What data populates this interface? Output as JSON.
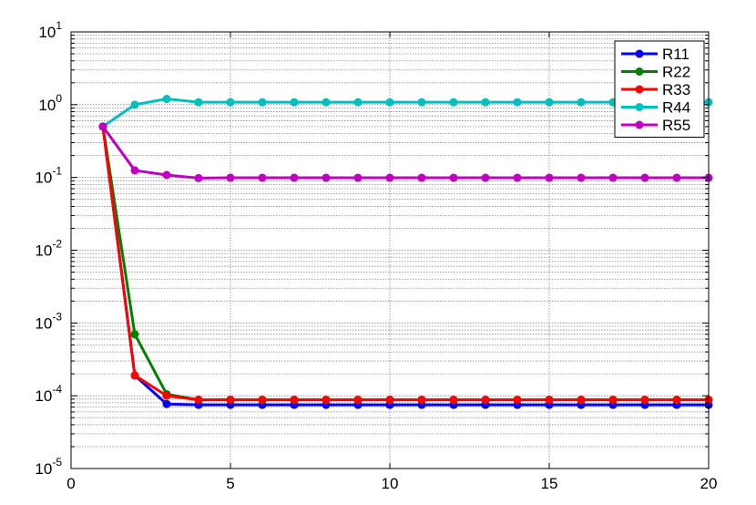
{
  "chart_data": {
    "type": "line",
    "title": "",
    "xlabel": "",
    "ylabel": "",
    "xlim": [
      0,
      20
    ],
    "ylim": [
      1e-05,
      10
    ],
    "yscale": "log",
    "grid": true,
    "legend_position": "top-right",
    "x_ticks": [
      "0",
      "5",
      "10",
      "15",
      "20"
    ],
    "y_ticks": [
      {
        "base": "10",
        "exp": "-5"
      },
      {
        "base": "10",
        "exp": "-4"
      },
      {
        "base": "10",
        "exp": "-3"
      },
      {
        "base": "10",
        "exp": "-2"
      },
      {
        "base": "10",
        "exp": "-1"
      },
      {
        "base": "10",
        "exp": "0"
      },
      {
        "base": "10",
        "exp": "1"
      }
    ],
    "x": [
      1,
      2,
      3,
      4,
      5,
      6,
      7,
      8,
      9,
      10,
      11,
      12,
      13,
      14,
      15,
      16,
      17,
      18,
      19,
      20
    ],
    "series": [
      {
        "name": "R11",
        "color": "#0000ff",
        "values": [
          0.5,
          0.00019,
          7.7e-05,
          7.5e-05,
          7.5e-05,
          7.5e-05,
          7.5e-05,
          7.5e-05,
          7.5e-05,
          7.5e-05,
          7.5e-05,
          7.5e-05,
          7.5e-05,
          7.5e-05,
          7.5e-05,
          7.5e-05,
          7.5e-05,
          7.5e-05,
          7.5e-05,
          7.5e-05
        ]
      },
      {
        "name": "R22",
        "color": "#008000",
        "values": [
          0.5,
          0.0007,
          0.000105,
          8.8e-05,
          8.8e-05,
          8.8e-05,
          8.8e-05,
          8.8e-05,
          8.8e-05,
          8.8e-05,
          8.8e-05,
          8.8e-05,
          8.8e-05,
          8.8e-05,
          8.8e-05,
          8.8e-05,
          8.8e-05,
          8.8e-05,
          8.8e-05,
          8.8e-05
        ]
      },
      {
        "name": "R33",
        "color": "#ff0000",
        "values": [
          0.5,
          0.00019,
          0.0001,
          8.8e-05,
          8.8e-05,
          8.8e-05,
          8.8e-05,
          8.8e-05,
          8.8e-05,
          8.8e-05,
          8.8e-05,
          8.8e-05,
          8.8e-05,
          8.8e-05,
          8.8e-05,
          8.8e-05,
          8.8e-05,
          8.8e-05,
          8.8e-05,
          8.8e-05
        ]
      },
      {
        "name": "R44",
        "color": "#00bfbf",
        "values": [
          0.5,
          1.0,
          1.2,
          1.08,
          1.08,
          1.08,
          1.08,
          1.08,
          1.08,
          1.08,
          1.08,
          1.08,
          1.08,
          1.08,
          1.08,
          1.08,
          1.08,
          1.08,
          1.08,
          1.08
        ]
      },
      {
        "name": "R55",
        "color": "#bf00bf",
        "values": [
          0.5,
          0.125,
          0.108,
          0.098,
          0.099,
          0.099,
          0.099,
          0.099,
          0.099,
          0.099,
          0.099,
          0.099,
          0.099,
          0.099,
          0.099,
          0.099,
          0.099,
          0.099,
          0.099,
          0.099
        ]
      }
    ]
  }
}
